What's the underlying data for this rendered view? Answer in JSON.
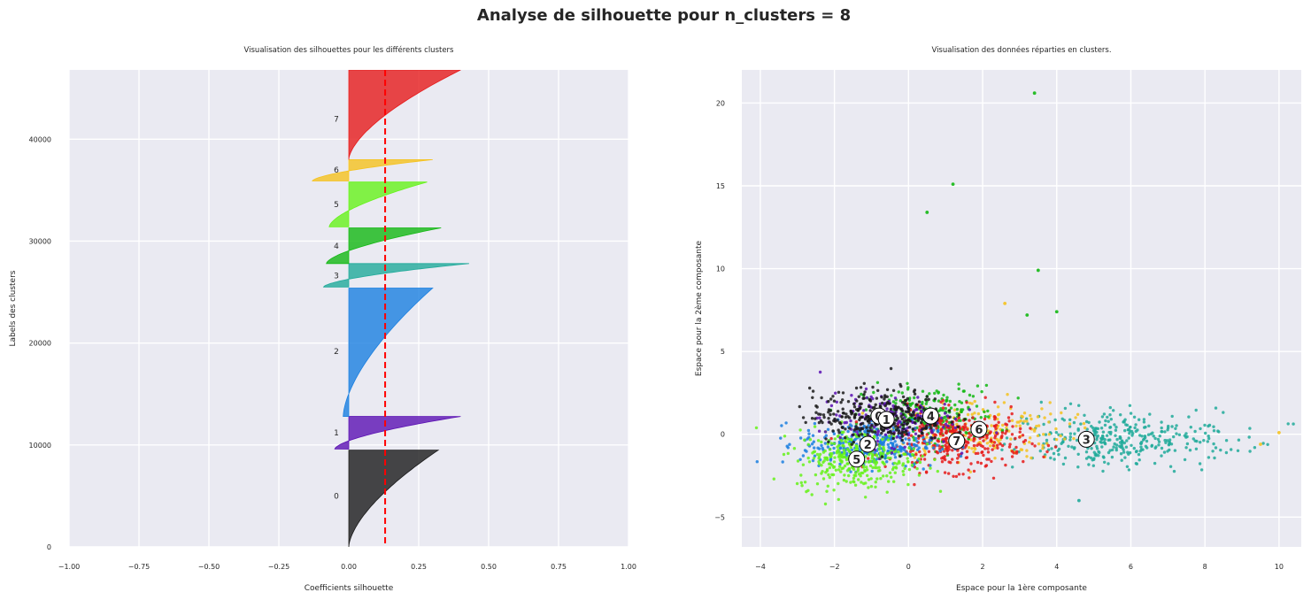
{
  "suptitle": "Analyse de silhouette pour n_clusters = 8",
  "colors": {
    "background": "#eaeaf2",
    "grid": "#ffffff",
    "avg_line": "#ff0000",
    "clusters": [
      "#1a1a1a",
      "#5b11b3",
      "#1a7fe0",
      "#20aa9a",
      "#13b813",
      "#66f21a",
      "#f5c21e",
      "#e61a1a"
    ]
  },
  "chart_data": [
    {
      "type": "area",
      "title": "Visualisation des silhouettes pour les différents clusters",
      "xlabel": "Coefficients silhouette",
      "ylabel": "Labels des clusters",
      "xlim": [
        -1.0,
        1.0
      ],
      "ylim": [
        0,
        46800
      ],
      "xticks": [
        -1.0,
        -0.75,
        -0.5,
        -0.25,
        0.0,
        0.25,
        0.5,
        0.75,
        1.0
      ],
      "xtick_labels": [
        "−1.00",
        "−0.75",
        "−0.50",
        "−0.25",
        "0.00",
        "0.25",
        "0.50",
        "0.75",
        "1.00"
      ],
      "yticks": [
        0,
        10000,
        20000,
        30000,
        40000
      ],
      "ytick_labels": [
        "0",
        "10000",
        "20000",
        "30000",
        "40000"
      ],
      "grid": true,
      "silhouette_average": 0.13,
      "clusters": [
        {
          "label": "0",
          "y_lower": 0,
          "y_upper": 9500,
          "min_coef": 0.0,
          "max_coef": 0.32,
          "label_y": 5000
        },
        {
          "label": "1",
          "y_lower": 9600,
          "y_upper": 12800,
          "min_coef": -0.05,
          "max_coef": 0.4,
          "label_y": 11200
        },
        {
          "label": "2",
          "y_lower": 12800,
          "y_upper": 25400,
          "min_coef": -0.02,
          "max_coef": 0.3,
          "label_y": 19200
        },
        {
          "label": "3",
          "y_lower": 25500,
          "y_upper": 27800,
          "min_coef": -0.09,
          "max_coef": 0.43,
          "label_y": 26600
        },
        {
          "label": "4",
          "y_lower": 27800,
          "y_upper": 31300,
          "min_coef": -0.08,
          "max_coef": 0.33,
          "label_y": 29500
        },
        {
          "label": "5",
          "y_lower": 31400,
          "y_upper": 35800,
          "min_coef": -0.07,
          "max_coef": 0.28,
          "label_y": 33600
        },
        {
          "label": "6",
          "y_lower": 35900,
          "y_upper": 38000,
          "min_coef": -0.13,
          "max_coef": 0.3,
          "label_y": 37000
        },
        {
          "label": "7",
          "y_lower": 38000,
          "y_upper": 46800,
          "min_coef": 0.0,
          "max_coef": 0.4,
          "label_y": 42000
        }
      ]
    },
    {
      "type": "scatter",
      "title": "Visualisation des données réparties en clusters.",
      "xlabel": "Espace pour la 1ère composante",
      "ylabel": "Espace pour la 2ème composante",
      "xlim": [
        -4.5,
        10.6
      ],
      "ylim": [
        -6.8,
        22.0
      ],
      "xticks": [
        -4,
        -2,
        0,
        2,
        4,
        6,
        8,
        10
      ],
      "xtick_labels": [
        "−4",
        "−2",
        "0",
        "2",
        "4",
        "6",
        "8",
        "10"
      ],
      "yticks": [
        -5,
        0,
        5,
        10,
        15,
        20
      ],
      "ytick_labels": [
        "−5",
        "0",
        "5",
        "10",
        "15",
        "20"
      ],
      "grid": true,
      "clusters": [
        {
          "label": "0",
          "center": [
            -0.8,
            1.1
          ],
          "spread": [
            0.9,
            0.8
          ],
          "count": 320
        },
        {
          "label": "1",
          "center": [
            -0.6,
            0.9
          ],
          "spread": [
            0.9,
            0.8
          ],
          "count": 160
        },
        {
          "label": "2",
          "center": [
            -1.1,
            -0.6
          ],
          "spread": [
            0.9,
            0.7
          ],
          "count": 330
        },
        {
          "label": "3",
          "center": [
            4.8,
            -0.3
          ],
          "spread": [
            1.3,
            0.8
          ],
          "count": 360
        },
        {
          "label": "4",
          "center": [
            0.6,
            1.1
          ],
          "spread": [
            0.9,
            0.9
          ],
          "count": 230
        },
        {
          "label": "5",
          "center": [
            -1.4,
            -1.5
          ],
          "spread": [
            0.8,
            0.9
          ],
          "count": 330
        },
        {
          "label": "6",
          "center": [
            1.9,
            0.3
          ],
          "spread": [
            1.2,
            0.9
          ],
          "count": 200
        },
        {
          "label": "7",
          "center": [
            1.3,
            -0.4
          ],
          "spread": [
            0.9,
            0.9
          ],
          "count": 360
        }
      ],
      "outliers": [
        {
          "x": 3.4,
          "y": 20.6,
          "cluster": "4"
        },
        {
          "x": 1.2,
          "y": 15.1,
          "cluster": "4"
        },
        {
          "x": 0.5,
          "y": 13.4,
          "cluster": "4"
        },
        {
          "x": 3.5,
          "y": 9.9,
          "cluster": "4"
        },
        {
          "x": 4.0,
          "y": 7.4,
          "cluster": "4"
        },
        {
          "x": 2.6,
          "y": 7.9,
          "cluster": "6"
        },
        {
          "x": 3.2,
          "y": 7.2,
          "cluster": "4"
        },
        {
          "x": 10.0,
          "y": 0.1,
          "cluster": "6"
        },
        {
          "x": 9.5,
          "y": -0.6,
          "cluster": "6"
        },
        {
          "x": 4.6,
          "y": -4.0,
          "cluster": "3"
        }
      ]
    }
  ]
}
